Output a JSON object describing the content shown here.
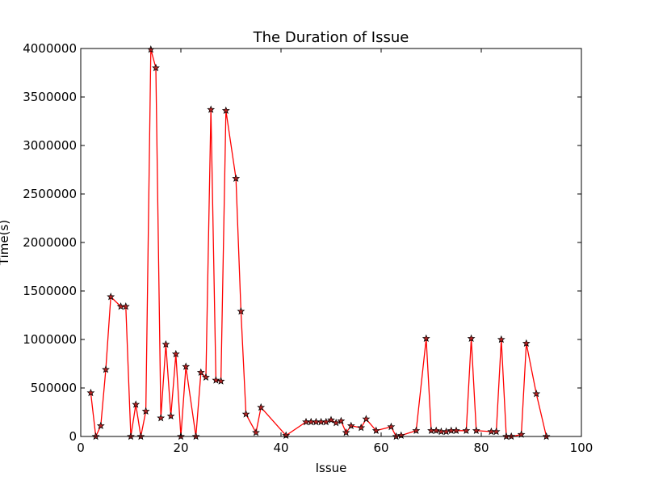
{
  "chart_data": {
    "type": "line",
    "title": "The Duration of Issue",
    "xlabel": "Issue",
    "ylabel": "Time(s)",
    "xlim": [
      0,
      100
    ],
    "ylim": [
      0,
      4000000
    ],
    "x_ticks": [
      0,
      20,
      40,
      60,
      80,
      100
    ],
    "y_ticks": [
      0,
      500000,
      1000000,
      1500000,
      2000000,
      2500000,
      3000000,
      3500000,
      4000000
    ],
    "grid": false,
    "legend": "none",
    "line_color": "#ff0000",
    "marker": "star",
    "marker_fill": "#b22222",
    "series": [
      {
        "x": [
          2,
          3,
          4,
          5,
          6,
          8,
          9,
          10,
          11,
          12,
          13,
          14,
          15,
          16,
          17,
          18,
          19,
          20,
          21,
          23,
          24,
          25,
          26,
          27,
          28,
          29,
          31,
          32,
          33,
          35,
          36,
          41,
          45,
          46,
          47,
          48,
          49,
          50,
          51,
          52,
          53,
          54,
          56,
          57,
          59,
          62,
          63,
          64,
          67,
          69,
          70,
          71,
          72,
          73,
          74,
          75,
          77,
          78,
          79,
          82,
          83,
          84,
          85,
          86,
          88,
          89,
          91,
          93
        ],
        "y": [
          450000,
          0,
          110000,
          690000,
          1440000,
          1340000,
          1340000,
          0,
          330000,
          0,
          260000,
          3990000,
          3800000,
          190000,
          950000,
          210000,
          850000,
          0,
          720000,
          0,
          660000,
          610000,
          3370000,
          580000,
          570000,
          3360000,
          2660000,
          1290000,
          230000,
          40000,
          300000,
          10000,
          150000,
          150000,
          150000,
          150000,
          150000,
          170000,
          140000,
          160000,
          40000,
          110000,
          90000,
          180000,
          60000,
          100000,
          0,
          10000,
          60000,
          1010000,
          60000,
          60000,
          50000,
          50000,
          60000,
          60000,
          60000,
          1010000,
          60000,
          50000,
          50000,
          1000000,
          0,
          0,
          20000,
          960000,
          440000,
          0
        ]
      }
    ]
  }
}
